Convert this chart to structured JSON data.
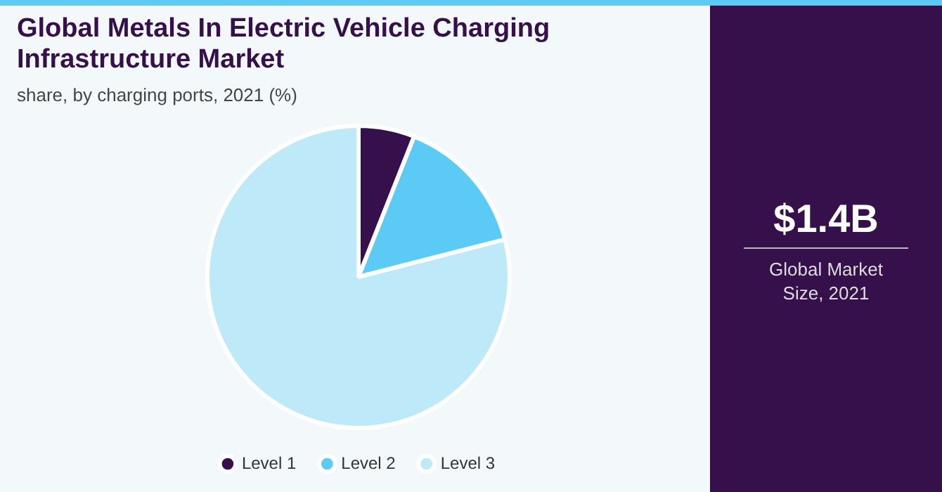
{
  "chart_data": {
    "type": "pie",
    "title": "Global Metals In Electric Vehicle Charging Infrastructure Market",
    "subtitle": "share, by charging ports, 2021 (%)",
    "categories": [
      "Level 1",
      "Level 2",
      "Level 3"
    ],
    "values": [
      6,
      15,
      79
    ],
    "colors": [
      "#35104a",
      "#5bcbf5",
      "#bde9f9"
    ],
    "legend": "bottom",
    "annotations": [
      "$1.4B",
      "Global Market Size, 2021"
    ]
  }
}
